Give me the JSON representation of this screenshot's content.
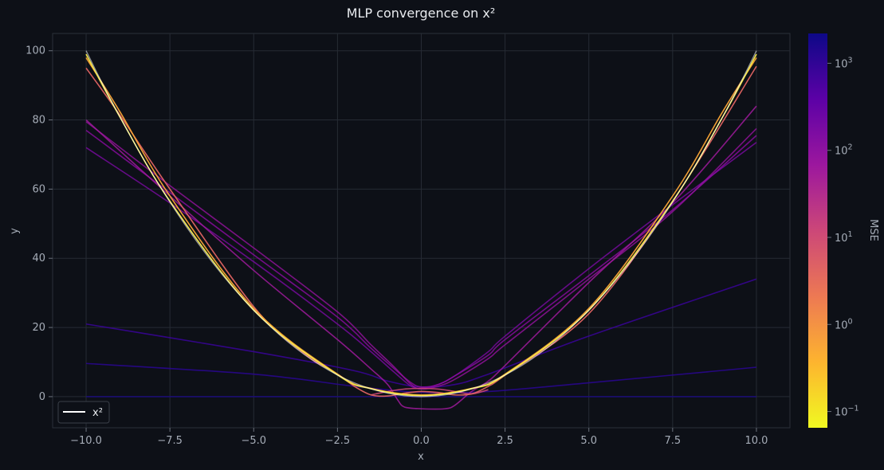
{
  "chart_data": {
    "type": "line",
    "title": "MLP convergence on x²",
    "xlabel": "x",
    "ylabel": "y",
    "xlim": [
      -11,
      11
    ],
    "ylim": [
      -9,
      105
    ],
    "x_ticks": [
      -10,
      -7.5,
      -5,
      -2.5,
      0,
      2.5,
      5,
      7.5,
      10
    ],
    "x_tick_labels": [
      "−10.0",
      "−7.5",
      "−5.0",
      "−2.5",
      "0.0",
      "2.5",
      "5.0",
      "7.5",
      "10.0"
    ],
    "y_ticks": [
      0,
      20,
      40,
      60,
      80,
      100
    ],
    "y_tick_labels": [
      "0",
      "20",
      "40",
      "60",
      "80",
      "100"
    ],
    "grid": true,
    "legend": {
      "placement": "lower-left",
      "entries": [
        {
          "label": "x²",
          "color": "#ffffff"
        }
      ]
    },
    "colorbar": {
      "label": "MSE",
      "scale": "log",
      "range": [
        0.065,
        2200
      ],
      "ticks": [
        0.1,
        1,
        10,
        100,
        1000
      ],
      "tick_bases": [
        "10",
        "10",
        "10",
        "10",
        "10"
      ],
      "tick_exponents": [
        "−1",
        "0",
        "1",
        "2",
        "3"
      ],
      "colormap": [
        "#f0f921",
        "#fdb42f",
        "#ed7953",
        "#cc4778",
        "#9c179e",
        "#5c01a6",
        "#0d0887"
      ]
    },
    "target_series": {
      "label": "x²",
      "color": "#ffffff"
    },
    "series": [
      {
        "mse": 1800,
        "color": "#1b0a80",
        "opacity": 0.85,
        "points": [
          [
            -10,
            0
          ],
          [
            -5,
            0
          ],
          [
            0,
            0
          ],
          [
            5,
            0
          ],
          [
            10,
            0
          ]
        ]
      },
      {
        "mse": 1100,
        "color": "#2a0693",
        "opacity": 0.85,
        "points": [
          [
            -10,
            9.6
          ],
          [
            -5,
            6.5
          ],
          [
            -2,
            3
          ],
          [
            0,
            1.2
          ],
          [
            2,
            1.5
          ],
          [
            5,
            4
          ],
          [
            10,
            8.5
          ]
        ]
      },
      {
        "mse": 650,
        "color": "#3a049a",
        "opacity": 0.85,
        "points": [
          [
            -10,
            21
          ],
          [
            -5,
            13
          ],
          [
            -2,
            7.5
          ],
          [
            -1,
            4.5
          ],
          [
            0,
            2.8
          ],
          [
            1,
            3.5
          ],
          [
            2,
            6.5
          ],
          [
            5,
            17.5
          ],
          [
            10,
            34
          ]
        ]
      },
      {
        "mse": 90,
        "color": "#7c0aa4",
        "opacity": 0.8,
        "points": [
          [
            -10,
            72
          ],
          [
            -7.5,
            56
          ],
          [
            -5,
            39
          ],
          [
            -2.5,
            21
          ],
          [
            -1.5,
            13
          ],
          [
            -0.8,
            7
          ],
          [
            -0.3,
            3
          ],
          [
            0,
            2.4
          ],
          [
            0.5,
            3.5
          ],
          [
            1,
            6
          ],
          [
            2,
            13
          ],
          [
            2.5,
            17.5
          ],
          [
            5,
            37
          ],
          [
            7.5,
            55.5
          ],
          [
            10,
            73.5
          ]
        ]
      },
      {
        "mse": 60,
        "color": "#8d0ba4",
        "opacity": 0.8,
        "points": [
          [
            -10,
            77
          ],
          [
            -7.5,
            59
          ],
          [
            -5,
            41
          ],
          [
            -2.5,
            23
          ],
          [
            -1.5,
            14
          ],
          [
            -0.8,
            8
          ],
          [
            -0.3,
            4
          ],
          [
            0,
            2.8
          ],
          [
            0.5,
            3.5
          ],
          [
            1,
            6
          ],
          [
            2,
            12
          ],
          [
            2.5,
            16.5
          ],
          [
            5,
            35
          ],
          [
            7.5,
            54
          ],
          [
            10,
            75.5
          ]
        ]
      },
      {
        "mse": 45,
        "color": "#96119f",
        "opacity": 0.8,
        "points": [
          [
            -10,
            79.5
          ],
          [
            -7.5,
            61
          ],
          [
            -5,
            43
          ],
          [
            -2.5,
            24.5
          ],
          [
            -1.5,
            15
          ],
          [
            -0.8,
            8.5
          ],
          [
            -0.3,
            3.5
          ],
          [
            0,
            2.2
          ],
          [
            0.5,
            3
          ],
          [
            1,
            5
          ],
          [
            2,
            11
          ],
          [
            2.5,
            15
          ],
          [
            5,
            34
          ],
          [
            7.5,
            53.5
          ],
          [
            10,
            77.5
          ]
        ]
      },
      {
        "mse": 25,
        "color": "#a01a9c",
        "opacity": 0.85,
        "points": [
          [
            -10,
            80
          ],
          [
            -7.5,
            58
          ],
          [
            -5,
            36.5
          ],
          [
            -2.5,
            16.5
          ],
          [
            -1.5,
            8
          ],
          [
            -1,
            3.5
          ],
          [
            -0.7,
            -1
          ],
          [
            -0.5,
            -3
          ],
          [
            0,
            -3.5
          ],
          [
            0.7,
            -3.5
          ],
          [
            1,
            -2.5
          ],
          [
            1.5,
            1.5
          ],
          [
            2,
            4.5
          ],
          [
            2.5,
            9
          ],
          [
            5,
            33
          ],
          [
            7.5,
            56
          ],
          [
            10,
            84
          ]
        ]
      },
      {
        "mse": 8,
        "color": "#cc4778",
        "opacity": 0.9,
        "points": [
          [
            -1.5,
            0.5
          ],
          [
            -1,
            1.5
          ],
          [
            -0.5,
            2.2
          ],
          [
            0,
            2.4
          ],
          [
            0.5,
            2.2
          ],
          [
            1,
            1.5
          ],
          [
            1.5,
            0.8
          ],
          [
            2,
            2
          ]
        ]
      },
      {
        "mse": 2,
        "color": "#e16462",
        "opacity": 0.95,
        "points": [
          [
            -10,
            95
          ],
          [
            -9,
            81.5
          ],
          [
            -7.5,
            60
          ],
          [
            -5,
            26
          ],
          [
            -3.5,
            12.5
          ],
          [
            -2.5,
            6.5
          ],
          [
            -2,
            3
          ],
          [
            -1.5,
            0.5
          ],
          [
            -1,
            0.2
          ],
          [
            -0.5,
            1
          ],
          [
            0,
            1.5
          ],
          [
            0.5,
            1.2
          ],
          [
            1,
            0.5
          ],
          [
            1.5,
            0.8
          ],
          [
            2,
            3
          ],
          [
            2.5,
            6.2
          ],
          [
            5,
            24
          ],
          [
            7.5,
            56.5
          ],
          [
            10,
            95.5
          ]
        ]
      },
      {
        "mse": 0.5,
        "color": "#fca636",
        "opacity": 0.95,
        "points": [
          [
            -10,
            98
          ],
          [
            -9,
            82.5
          ],
          [
            -7.5,
            58
          ],
          [
            -5,
            25.5
          ],
          [
            -2.5,
            6.5
          ],
          [
            -1.5,
            2.4
          ],
          [
            0,
            0.5
          ],
          [
            1.5,
            2.4
          ],
          [
            2.5,
            6.5
          ],
          [
            5,
            25.5
          ],
          [
            7.5,
            58
          ],
          [
            9,
            82.5
          ],
          [
            10,
            98
          ]
        ]
      },
      {
        "mse": 0.2,
        "color": "#f4e94a",
        "opacity": 1,
        "points": [
          [
            -10,
            99
          ],
          [
            -9,
            81
          ],
          [
            -7.5,
            56.5
          ],
          [
            -5,
            25
          ],
          [
            -2.5,
            6.3
          ],
          [
            -1.5,
            2.3
          ],
          [
            0,
            0.3
          ],
          [
            1.5,
            2.3
          ],
          [
            2.5,
            6.3
          ],
          [
            5,
            25
          ],
          [
            7.5,
            56.5
          ],
          [
            9,
            81
          ],
          [
            10,
            99
          ]
        ]
      }
    ]
  }
}
